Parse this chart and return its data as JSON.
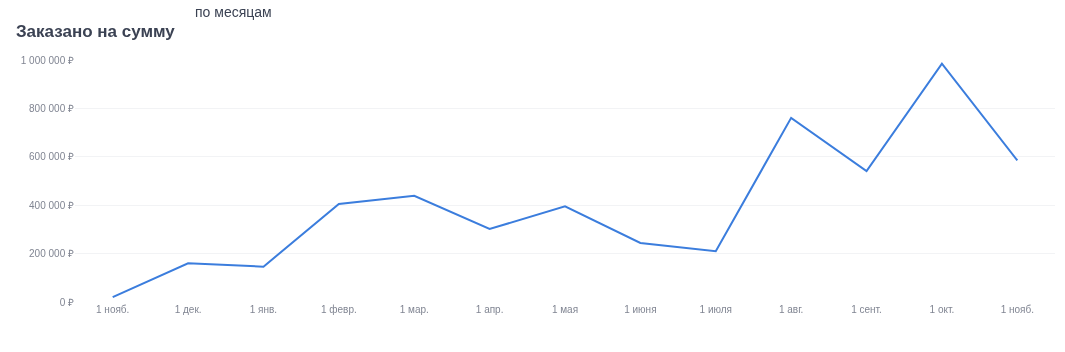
{
  "chart_data": {
    "type": "line",
    "title": "Заказано на сумму",
    "annotations": [
      "по месяцам"
    ],
    "categories": [
      "1 нояб.",
      "1 дек.",
      "1 янв.",
      "1 февр.",
      "1 мар.",
      "1 апр.",
      "1 мая",
      "1 июня",
      "1 июля",
      "1 авг.",
      "1 сент.",
      "1 окт.",
      "1 нояб."
    ],
    "series": [
      {
        "color": "#3b7ddd",
        "values": [
          20000,
          160000,
          146000,
          405000,
          439000,
          302000,
          395000,
          244000,
          210000,
          761000,
          541000,
          985000,
          585000
        ]
      }
    ],
    "ylim": [
      0,
      1000000
    ],
    "yticks": [
      {
        "value": 0,
        "label": "0 ₽"
      },
      {
        "value": 200000,
        "label": "200 000 ₽"
      },
      {
        "value": 400000,
        "label": "400 000 ₽"
      },
      {
        "value": 600000,
        "label": "600 000 ₽"
      },
      {
        "value": 800000,
        "label": "800 000 ₽"
      },
      {
        "value": 1000000,
        "label": "1 000 000 ₽"
      }
    ],
    "grid": "y",
    "legend": false,
    "marker": "none",
    "line_style": "solid"
  }
}
